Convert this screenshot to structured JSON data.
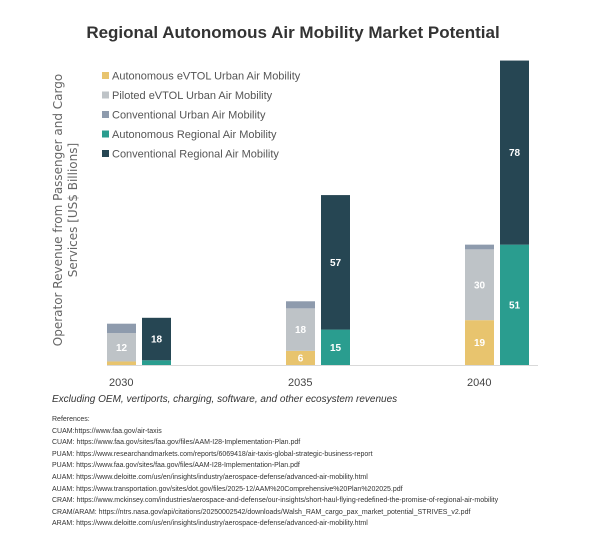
{
  "chart_data": {
    "type": "bar",
    "stacked": true,
    "title": "Regional Autonomous Air Mobility Market Potential",
    "xlabel": "",
    "ylabel": "Operator Revenue from Passenger and Cargo Services [US$ Billions]",
    "ylabel_lines": [
      "Operator Revenue from Passenger and Cargo",
      "Services [US$ Billions]"
    ],
    "categories": [
      "2030",
      "2035",
      "2040"
    ],
    "ylim": [
      0,
      130
    ],
    "grid": false,
    "legend_position": "top-left",
    "stacks": [
      {
        "name": "Urban Air Mobility",
        "series": [
          "Autonomous eVTOL Urban Air Mobility",
          "Piloted eVTOL Urban Air Mobility",
          "Conventional Urban Air Mobility"
        ]
      },
      {
        "name": "Regional Air Mobility",
        "series": [
          "Autonomous Regional Air Mobility",
          "Conventional Regional Air Mobility"
        ]
      }
    ],
    "series": [
      {
        "name": "Autonomous eVTOL Urban Air Mobility",
        "color": "#E8C46E",
        "stack": "Urban Air Mobility",
        "values": [
          1.5,
          6,
          19
        ],
        "labels": [
          "",
          "6",
          "19"
        ]
      },
      {
        "name": "Piloted eVTOL Urban Air Mobility",
        "color": "#BEC3C7",
        "stack": "Urban Air Mobility",
        "values": [
          12,
          18,
          30
        ],
        "labels": [
          "12",
          "18",
          "30"
        ]
      },
      {
        "name": "Conventional Urban Air Mobility",
        "color": "#8E9BAD",
        "stack": "Urban Air Mobility",
        "values": [
          4,
          3,
          2
        ],
        "labels": [
          "",
          "",
          ""
        ]
      },
      {
        "name": "Autonomous Regional Air Mobility",
        "color": "#2A9D8F",
        "stack": "Regional Air Mobility",
        "values": [
          2,
          15,
          51
        ],
        "labels": [
          "",
          "15",
          "51"
        ]
      },
      {
        "name": "Conventional Regional Air Mobility",
        "color": "#264653",
        "stack": "Regional Air Mobility",
        "values": [
          18,
          57,
          78
        ],
        "labels": [
          "18",
          "57",
          "78"
        ]
      }
    ]
  },
  "footnote": "Excluding OEM, vertiports, charging, software, and other ecosystem revenues",
  "references": {
    "heading": "References:",
    "items": [
      "CUAM:https://www.faa.gov/air-taxis",
      "CUAM: https://www.faa.gov/sites/faa.gov/files/AAM-I28-Implementation-Plan.pdf",
      "PUAM: https://www.researchandmarkets.com/reports/6069418/air-taxis-global-strategic-business-report",
      "PUAM: https://www.faa.gov/sites/faa.gov/files/AAM-I28-Implementation-Plan.pdf",
      "AUAM: https://www.deloitte.com/us/en/insights/industry/aerospace-defense/advanced-air-mobility.html",
      "AUAM: https://www.transportation.gov/sites/dot.gov/files/2025-12/AAM%20Comprehensive%20Plan%202025.pdf",
      "CRAM: https://www.mckinsey.com/industries/aerospace-and-defense/our-insights/short-haul-flying-redefined-the-promise-of-regional-air-mobility",
      "CRAM/ARAM: https://ntrs.nasa.gov/api/citations/20250002542/downloads/Walsh_RAM_cargo_pax_market_potential_STRIVES_v2.pdf",
      "ARAM: https://www.deloitte.com/us/en/insights/industry/aerospace-defense/advanced-air-mobility.html"
    ]
  }
}
